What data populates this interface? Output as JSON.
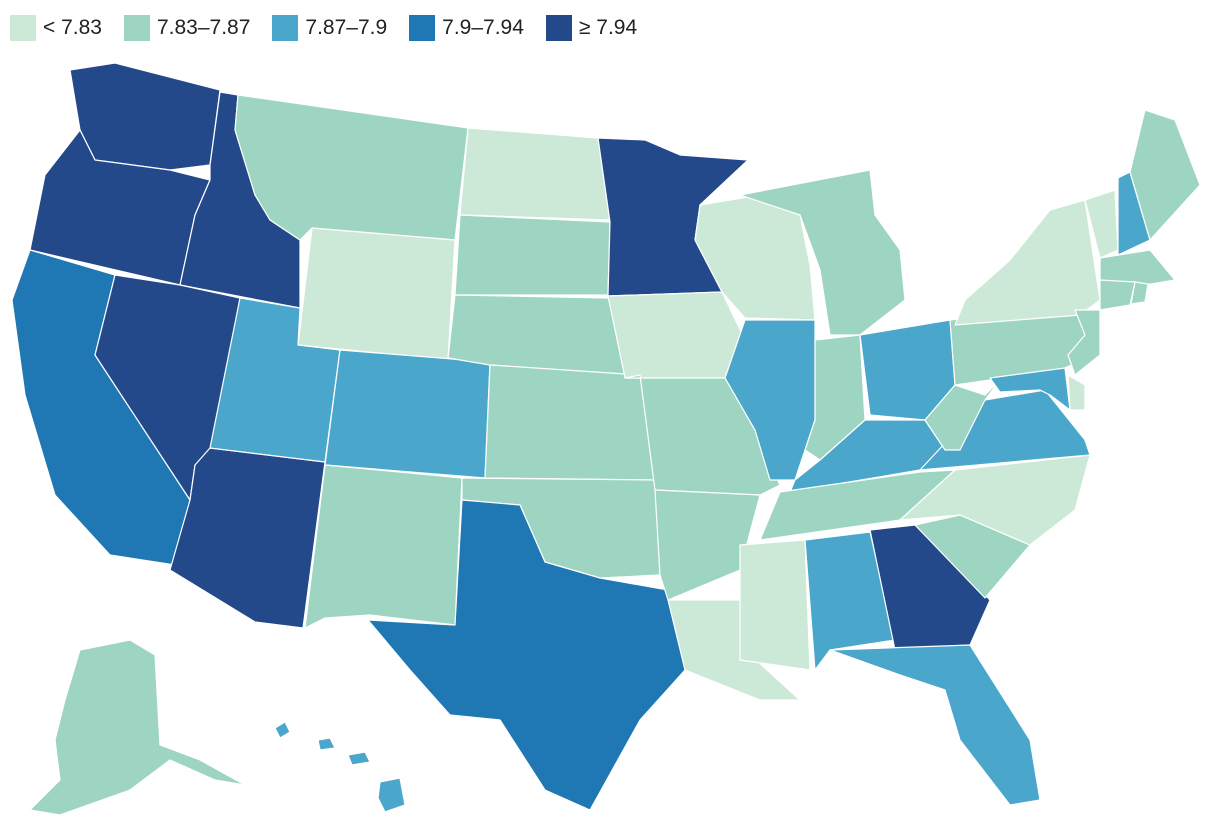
{
  "legend": [
    {
      "label": "< 7.83",
      "color": "#cce9d8"
    },
    {
      "label": "7.83–7.87",
      "color": "#9dd5c2"
    },
    {
      "label": "7.87–7.9",
      "color": "#4ba6cb"
    },
    {
      "label": "7.9–7.94",
      "color": "#1f77b4"
    },
    {
      "label": "≥ 7.94",
      "color": "#24498a"
    }
  ],
  "states": [
    {
      "id": "WA",
      "cls": 4
    },
    {
      "id": "OR",
      "cls": 4
    },
    {
      "id": "CA",
      "cls": 3
    },
    {
      "id": "ID",
      "cls": 4
    },
    {
      "id": "NV",
      "cls": 4
    },
    {
      "id": "AZ",
      "cls": 4
    },
    {
      "id": "MT",
      "cls": 1
    },
    {
      "id": "WY",
      "cls": 0
    },
    {
      "id": "UT",
      "cls": 2
    },
    {
      "id": "CO",
      "cls": 2
    },
    {
      "id": "NM",
      "cls": 1
    },
    {
      "id": "ND",
      "cls": 0
    },
    {
      "id": "SD",
      "cls": 1
    },
    {
      "id": "NE",
      "cls": 1
    },
    {
      "id": "KS",
      "cls": 1
    },
    {
      "id": "OK",
      "cls": 1
    },
    {
      "id": "TX",
      "cls": 3
    },
    {
      "id": "MN",
      "cls": 4
    },
    {
      "id": "IA",
      "cls": 0
    },
    {
      "id": "MO",
      "cls": 1
    },
    {
      "id": "AR",
      "cls": 1
    },
    {
      "id": "LA",
      "cls": 0
    },
    {
      "id": "WI",
      "cls": 0
    },
    {
      "id": "IL",
      "cls": 2
    },
    {
      "id": "MI",
      "cls": 1
    },
    {
      "id": "IN",
      "cls": 1
    },
    {
      "id": "OH",
      "cls": 2
    },
    {
      "id": "KY",
      "cls": 2
    },
    {
      "id": "TN",
      "cls": 1
    },
    {
      "id": "MS",
      "cls": 0
    },
    {
      "id": "AL",
      "cls": 2
    },
    {
      "id": "GA",
      "cls": 4
    },
    {
      "id": "FL",
      "cls": 2
    },
    {
      "id": "SC",
      "cls": 1
    },
    {
      "id": "NC",
      "cls": 0
    },
    {
      "id": "VA",
      "cls": 2
    },
    {
      "id": "WV",
      "cls": 1
    },
    {
      "id": "PA",
      "cls": 1
    },
    {
      "id": "NY",
      "cls": 0
    },
    {
      "id": "VT",
      "cls": 0
    },
    {
      "id": "NH",
      "cls": 2
    },
    {
      "id": "ME",
      "cls": 1
    },
    {
      "id": "MA",
      "cls": 1
    },
    {
      "id": "CT",
      "cls": 1
    },
    {
      "id": "RI",
      "cls": 1
    },
    {
      "id": "NJ",
      "cls": 1
    },
    {
      "id": "DE",
      "cls": 0
    },
    {
      "id": "MD",
      "cls": 2
    },
    {
      "id": "AK",
      "cls": 1
    },
    {
      "id": "HI",
      "cls": 2
    }
  ]
}
